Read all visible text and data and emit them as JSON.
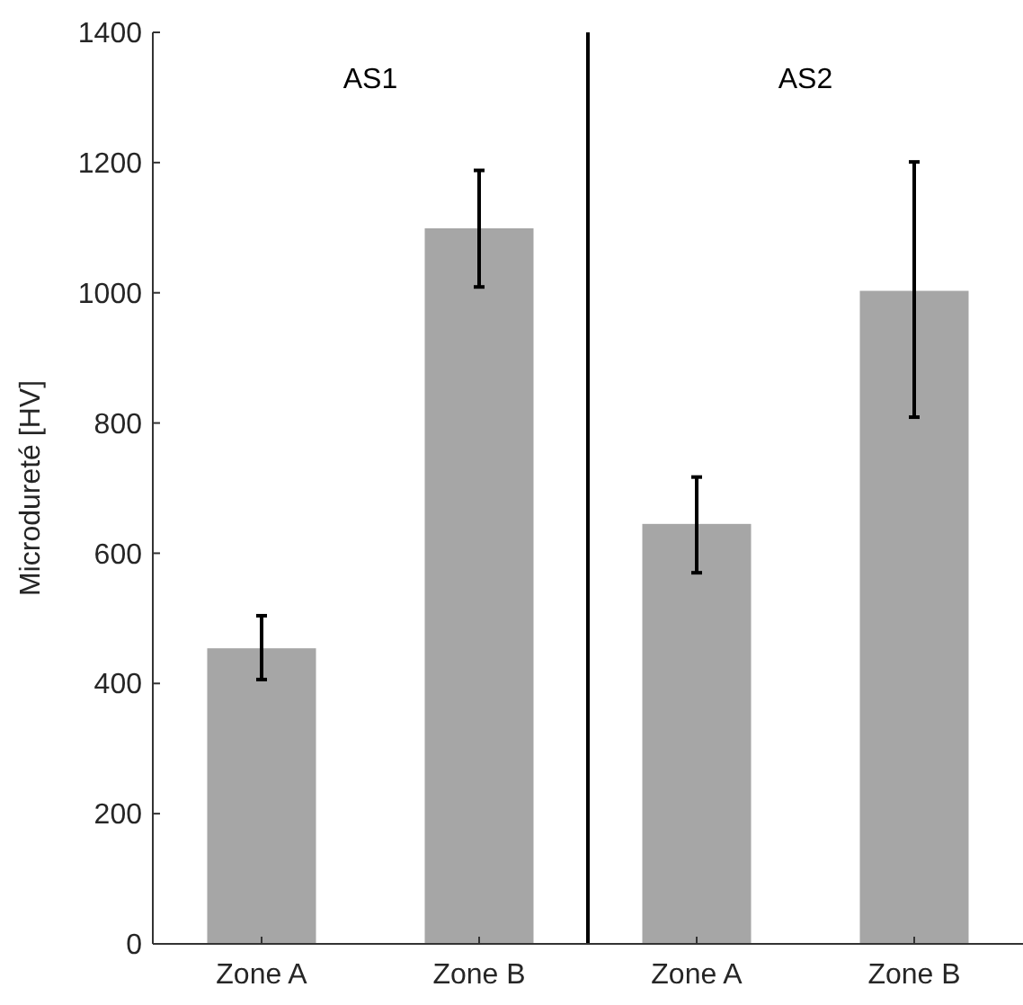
{
  "chart_data": {
    "type": "bar",
    "ylabel": "Microdureté [HV]",
    "categories": [
      "Zone A",
      "Zone B",
      "Zone A",
      "Zone B"
    ],
    "values": [
      454,
      1099,
      645,
      1003
    ],
    "errors": [
      [
        406,
        504
      ],
      [
        1009,
        1188
      ],
      [
        570,
        717
      ],
      [
        809,
        1201
      ]
    ],
    "color": "#a6a6a6",
    "ylim": [
      0,
      1400
    ],
    "yticks": [
      0,
      200,
      400,
      600,
      800,
      1000,
      1200,
      1400
    ],
    "grid": false,
    "annotations": [
      "AS1",
      "AS2"
    ]
  }
}
